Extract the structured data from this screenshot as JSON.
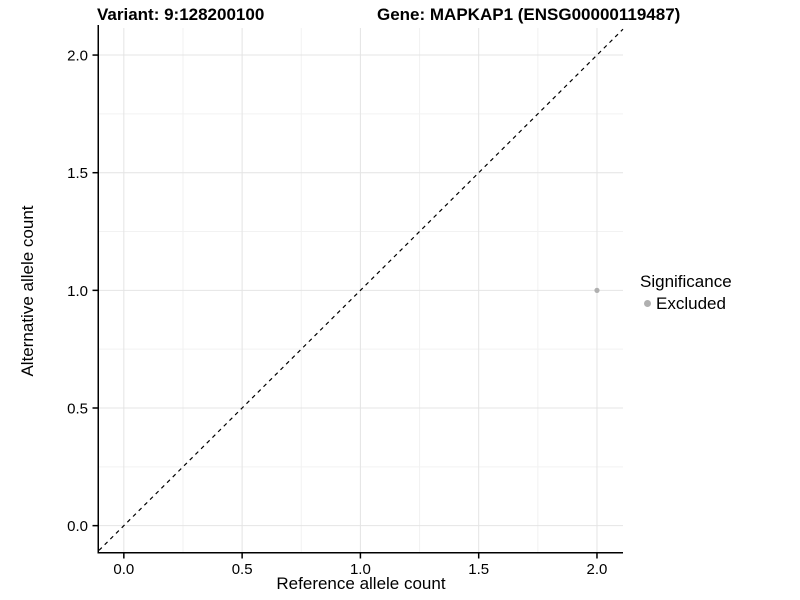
{
  "chart_data": {
    "type": "scatter",
    "title_left": "Variant: 9:128200100",
    "title_right": "Gene: MAPKAP1 (ENSG00000119487)",
    "xlabel": "Reference allele count",
    "ylabel": "Alternative allele count",
    "xlim": [
      -0.105,
      2.11
    ],
    "ylim": [
      -0.112,
      2.115
    ],
    "x_ticks": [
      0.0,
      0.5,
      1.0,
      1.5,
      2.0
    ],
    "x_tick_labels": [
      "0.0",
      "0.5",
      "1.0",
      "1.5",
      "2.0"
    ],
    "y_ticks": [
      0.0,
      0.5,
      1.0,
      1.5,
      2.0
    ],
    "y_tick_labels": [
      "0.0",
      "0.5",
      "1.0",
      "1.5",
      "2.0"
    ],
    "x_minor_ticks": [
      0.25,
      0.75,
      1.25,
      1.75
    ],
    "y_minor_ticks": [
      0.25,
      0.75,
      1.25,
      1.75
    ],
    "grid": true,
    "points": [
      {
        "x": 2.0,
        "y": 1.0,
        "series": "Excluded"
      }
    ],
    "reference_line": {
      "type": "identity",
      "style": "dashed",
      "color": "#000000"
    },
    "legend": {
      "title": "Significance",
      "position": "right",
      "entries": [
        {
          "label": "Excluded",
          "color": "#b0b0b0"
        }
      ]
    },
    "colors": {
      "point": "#b0b0b0",
      "grid_major": "#e4e4e4",
      "grid_minor": "#f2f2f2",
      "axis_line": "#000000",
      "tick_text": "#000000"
    }
  }
}
